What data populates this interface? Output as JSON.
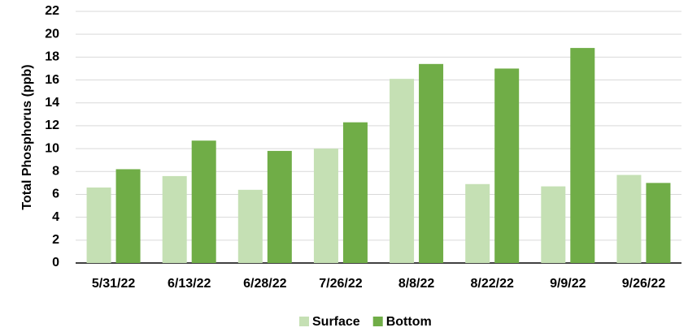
{
  "chart_data": {
    "type": "bar",
    "y_label": "Total Phosphorus (ppb)",
    "categories": [
      "5/31/22",
      "6/13/22",
      "6/28/22",
      "7/26/22",
      "8/8/22",
      "8/22/22",
      "9/9/22",
      "9/26/22"
    ],
    "series": [
      {
        "name": "Surface",
        "color": "#c5e0b4",
        "values": [
          6.6,
          7.6,
          6.4,
          10.0,
          16.1,
          6.9,
          6.7,
          7.7
        ]
      },
      {
        "name": "Bottom",
        "color": "#70ad47",
        "values": [
          8.2,
          10.7,
          9.8,
          12.3,
          17.4,
          17.0,
          18.8,
          7.0
        ]
      }
    ],
    "ylim": [
      0,
      22
    ],
    "yticks": [
      0,
      2,
      4,
      6,
      8,
      10,
      12,
      14,
      16,
      18,
      20,
      22
    ],
    "grid": true
  }
}
